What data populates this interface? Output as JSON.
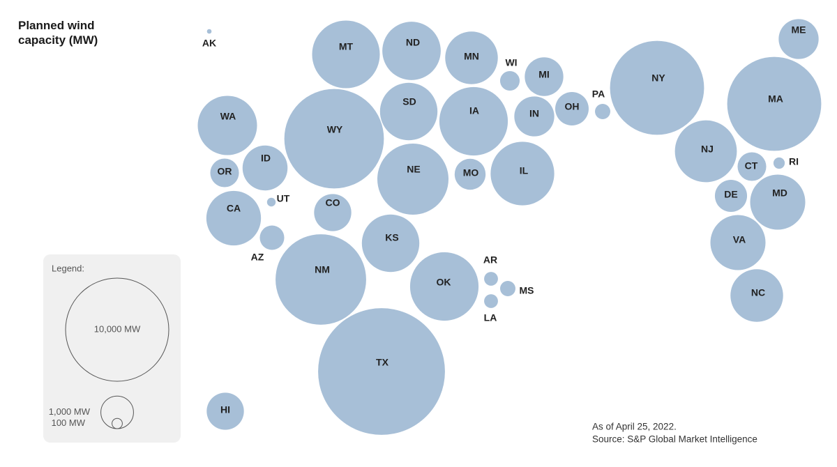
{
  "chart_data": {
    "type": "bubble",
    "title": "Planned wind capacity (MW)",
    "color": "#a7bfd7",
    "categories": [
      "AK",
      "MT",
      "ND",
      "MN",
      "WI",
      "MI",
      "NY",
      "ME",
      "MA",
      "WA",
      "WY",
      "SD",
      "IA",
      "IN",
      "OH",
      "PA",
      "ID",
      "OR",
      "NE",
      "MO",
      "IL",
      "NJ",
      "CT",
      "RI",
      "DE",
      "MD",
      "VA",
      "NC",
      "CA",
      "UT",
      "CO",
      "AZ",
      "KS",
      "NM",
      "OK",
      "AR",
      "MS",
      "LA",
      "TX",
      "HI"
    ],
    "values": [
      20,
      4300,
      3200,
      2600,
      360,
      1400,
      8300,
      1500,
      8300,
      3300,
      9300,
      3100,
      4400,
      1500,
      1050,
      220,
      1900,
      770,
      4750,
      900,
      3800,
      3600,
      770,
      120,
      970,
      2850,
      2850,
      2600,
      2800,
      70,
      1300,
      560,
      3100,
      7700,
      4400,
      180,
      220,
      180,
      15100,
      1300
    ],
    "legend": {
      "title": "Legend:",
      "sizes": [
        {
          "value": 10000,
          "label": "10,000 MW"
        },
        {
          "value": 1000,
          "label": "1,000 MW"
        },
        {
          "value": 100,
          "label": "100 MW"
        }
      ]
    },
    "notes": [
      "As of April 25, 2022.",
      "Source: S&P Global Market Intelligence"
    ]
  }
}
